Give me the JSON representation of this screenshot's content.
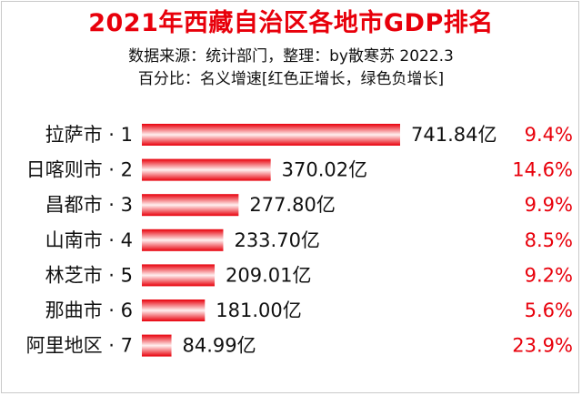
{
  "colors": {
    "title": "#e8000b",
    "bar_dark": "#e8000b",
    "bar_light": "#fff0f0",
    "increase": "#e8000b",
    "decrease": "#00a000"
  },
  "chart_data": {
    "type": "bar",
    "orientation": "horizontal",
    "title": "2021年西藏自治区各地市GDP排名",
    "subtitle_lines": [
      "数据来源：统计部门，整理：by散寒苏 2022.3",
      "百分比：名义增速[红色正增长，绿色负增长]"
    ],
    "categories": [
      "拉萨市 · 1",
      "日喀则市 · 2",
      "昌都市 · 3",
      "山南市 · 4",
      "林芝市 · 5",
      "那曲市 · 6",
      "阿里地区 · 7"
    ],
    "values": [
      741.84,
      370.02,
      277.8,
      233.7,
      209.01,
      181.0,
      84.99
    ],
    "value_labels": [
      "741.84亿",
      "370.02亿",
      "277.80亿",
      "233.70亿",
      "209.01亿",
      "181.00亿",
      "84.99亿"
    ],
    "growth_labels": [
      "9.4%",
      "14.6%",
      "9.9%",
      "8.5%",
      "9.2%",
      "5.6%",
      "23.9%"
    ],
    "growth": [
      9.4,
      14.6,
      9.9,
      8.5,
      9.2,
      5.6,
      23.9
    ],
    "xlim": [
      0,
      741.84
    ],
    "grid": false,
    "legend": "none"
  }
}
